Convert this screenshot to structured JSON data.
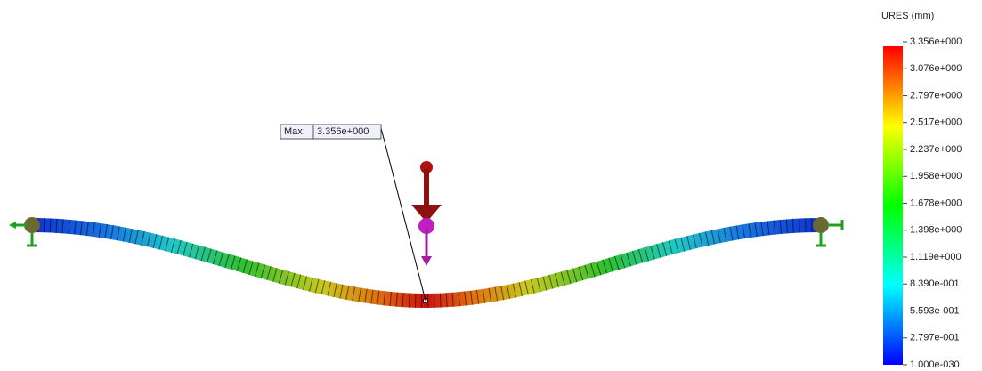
{
  "legend": {
    "title": "URES (mm)",
    "labels": [
      "3.356e+000",
      "3.076e+000",
      "2.797e+000",
      "2.517e+000",
      "2.237e+000",
      "1.958e+000",
      "1.678e+000",
      "1.398e+000",
      "1.119e+000",
      "8.390e-001",
      "5.593e-001",
      "2.797e-001",
      "1.000e-030"
    ]
  },
  "probe": {
    "label": "Max:",
    "value": "3.356e+000"
  }
}
